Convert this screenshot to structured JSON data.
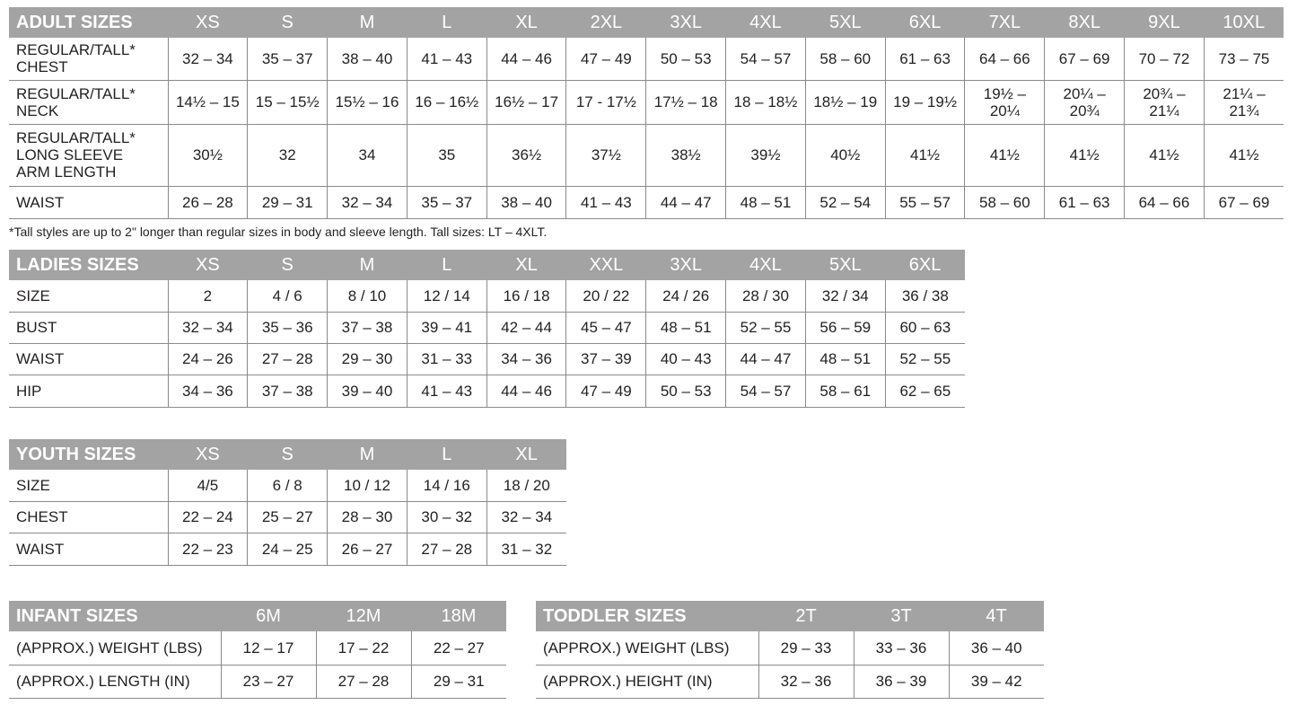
{
  "adult": {
    "title": "ADULT SIZES",
    "sizes": [
      "XS",
      "S",
      "M",
      "L",
      "XL",
      "2XL",
      "3XL",
      "4XL",
      "5XL",
      "6XL",
      "7XL",
      "8XL",
      "9XL",
      "10XL"
    ],
    "rows": [
      {
        "label": "REGULAR/TALL*\nCHEST",
        "values": [
          "32 – 34",
          "35 – 37",
          "38 – 40",
          "41 – 43",
          "44 – 46",
          "47 – 49",
          "50 – 53",
          "54 – 57",
          "58 – 60",
          "61 – 63",
          "64 – 66",
          "67 – 69",
          "70 – 72",
          "73 – 75"
        ]
      },
      {
        "label": "REGULAR/TALL*\nNECK",
        "values": [
          "14½ – 15",
          "15 – 15½",
          "15½ – 16",
          "16 – 16½",
          "16½ – 17",
          "17 - 17½",
          "17½ – 18",
          "18 – 18½",
          "18½ – 19",
          "19 – 19½",
          "19½ –\n20¼",
          "20¼ –\n20¾",
          "20¾ –\n21¼",
          "21¼ –\n21¾"
        ]
      },
      {
        "label": "REGULAR/TALL*\nLONG SLEEVE\nARM LENGTH",
        "values": [
          "30½",
          "32",
          "34",
          "35",
          "36½",
          "37½",
          "38½",
          "39½",
          "40½",
          "41½",
          "41½",
          "41½",
          "41½",
          "41½"
        ]
      },
      {
        "label": "WAIST",
        "values": [
          "26 – 28",
          "29 – 31",
          "32 – 34",
          "35 – 37",
          "38 – 40",
          "41 – 43",
          "44 – 47",
          "48 – 51",
          "52 – 54",
          "55 – 57",
          "58 – 60",
          "61 – 63",
          "64 – 66",
          "67 – 69"
        ]
      }
    ],
    "footnote": "*Tall styles are up to 2\" longer than regular sizes in body and sleeve length. Tall sizes: LT – 4XLT."
  },
  "ladies": {
    "title": "LADIES SIZES",
    "sizes": [
      "XS",
      "S",
      "M",
      "L",
      "XL",
      "XXL",
      "3XL",
      "4XL",
      "5XL",
      "6XL"
    ],
    "rows": [
      {
        "label": "SIZE",
        "values": [
          "2",
          "4 / 6",
          "8 / 10",
          "12 / 14",
          "16 / 18",
          "20 / 22",
          "24 / 26",
          "28 / 30",
          "32 / 34",
          "36 / 38"
        ]
      },
      {
        "label": "BUST",
        "values": [
          "32 – 34",
          "35 – 36",
          "37 – 38",
          "39 – 41",
          "42 – 44",
          "45 – 47",
          "48 – 51",
          "52 – 55",
          "56 – 59",
          "60 – 63"
        ]
      },
      {
        "label": "WAIST",
        "values": [
          "24 – 26",
          "27 – 28",
          "29 – 30",
          "31 – 33",
          "34 – 36",
          "37 – 39",
          "40 – 43",
          "44 – 47",
          "48 – 51",
          "52 – 55"
        ]
      },
      {
        "label": "HIP",
        "values": [
          "34 – 36",
          "37 – 38",
          "39 – 40",
          "41 – 43",
          "44 – 46",
          "47 – 49",
          "50 – 53",
          "54 – 57",
          "58 – 61",
          "62 – 65"
        ]
      }
    ]
  },
  "youth": {
    "title": "YOUTH SIZES",
    "sizes": [
      "XS",
      "S",
      "M",
      "L",
      "XL"
    ],
    "rows": [
      {
        "label": "SIZE",
        "values": [
          "4/5",
          "6 / 8",
          "10 / 12",
          "14 / 16",
          "18 / 20"
        ]
      },
      {
        "label": "CHEST",
        "values": [
          "22 – 24",
          "25 – 27",
          "28 – 30",
          "30 – 32",
          "32 – 34"
        ]
      },
      {
        "label": "WAIST",
        "values": [
          "22 – 23",
          "24 – 25",
          "26 – 27",
          "27 – 28",
          "31 – 32"
        ]
      }
    ]
  },
  "infant": {
    "title": "INFANT SIZES",
    "sizes": [
      "6M",
      "12M",
      "18M"
    ],
    "rows": [
      {
        "label": "(APPROX.) WEIGHT (LBS)",
        "values": [
          "12 – 17",
          "17 – 22",
          "22 – 27"
        ]
      },
      {
        "label": "(APPROX.) LENGTH (IN)",
        "values": [
          "23 – 27",
          "27 – 28",
          "29 – 31"
        ]
      }
    ]
  },
  "toddler": {
    "title": "TODDLER SIZES",
    "sizes": [
      "2T",
      "3T",
      "4T"
    ],
    "rows": [
      {
        "label": "(APPROX.) WEIGHT (LBS)",
        "values": [
          "29 – 33",
          "33 – 36",
          "36 – 40"
        ]
      },
      {
        "label": "(APPROX.) HEIGHT (IN)",
        "values": [
          "32 – 36",
          "36 – 39",
          "39 – 42"
        ]
      }
    ]
  },
  "colors": {
    "header_bg": "#a3a3a3",
    "header_text": "#ffffff",
    "grid": "#8a8a8a"
  }
}
